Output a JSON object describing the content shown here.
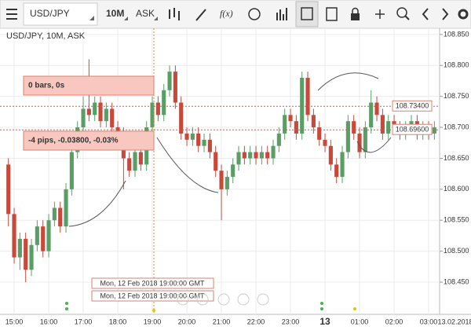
{
  "toolbar": {
    "symbol": "USD/JPY",
    "timeframe": "10M",
    "price": "ASK",
    "function": "f(x)"
  },
  "chart_data": {
    "type": "candlestick",
    "title": "USD/JPY, 10M, ASK",
    "categories": [
      null,
      "15:00",
      null,
      null,
      null,
      null,
      null,
      "16:00",
      null,
      null,
      null,
      null,
      null,
      "17:00",
      null,
      null,
      null,
      null,
      null,
      "18:00",
      null,
      null,
      null,
      null,
      null,
      "19:00",
      null,
      null,
      null,
      null,
      null,
      "20:00",
      null,
      null,
      null,
      null,
      null,
      "21:00",
      null,
      null,
      null,
      null,
      null,
      "22:00",
      null,
      null,
      null,
      null,
      null,
      "23:00",
      null,
      null,
      null,
      null,
      null,
      "13",
      null,
      null,
      null,
      null,
      null,
      "01:00",
      null,
      null,
      null,
      null,
      null,
      "02:00",
      null,
      null,
      null,
      null,
      null,
      "03:00",
      null
    ],
    "date_label": "13.02.2018",
    "open": [
      108.64,
      108.56,
      108.49,
      108.52,
      108.47,
      108.51,
      108.54,
      108.5,
      108.55,
      108.57,
      108.54,
      108.6,
      108.66,
      108.7,
      108.73,
      108.72,
      108.74,
      108.71,
      108.73,
      108.7,
      108.69,
      108.65,
      108.63,
      108.66,
      108.64,
      108.7,
      108.74,
      108.72,
      108.76,
      108.79,
      108.74,
      108.69,
      108.68,
      108.69,
      108.67,
      108.68,
      108.66,
      108.63,
      108.6,
      108.62,
      108.64,
      108.66,
      108.65,
      108.66,
      108.65,
      108.66,
      108.65,
      108.67,
      108.69,
      108.72,
      108.71,
      108.69,
      108.78,
      108.72,
      108.7,
      108.68,
      108.67,
      108.64,
      108.62,
      108.66,
      108.71,
      108.69,
      108.66,
      108.7,
      108.74,
      108.72,
      108.69,
      108.71,
      108.7,
      108.69,
      108.7,
      108.71,
      108.69,
      108.7,
      108.69
    ],
    "high": [
      108.65,
      108.57,
      108.53,
      108.53,
      108.52,
      108.55,
      108.55,
      108.56,
      108.58,
      108.58,
      108.61,
      108.67,
      108.71,
      108.75,
      108.81,
      108.75,
      108.75,
      108.74,
      108.74,
      108.71,
      108.7,
      108.66,
      108.67,
      108.67,
      108.71,
      108.75,
      108.75,
      108.77,
      108.8,
      108.8,
      108.75,
      108.7,
      108.7,
      108.7,
      108.69,
      108.69,
      108.67,
      108.64,
      108.63,
      108.65,
      108.67,
      108.67,
      108.67,
      108.67,
      108.67,
      108.67,
      108.68,
      108.7,
      108.73,
      108.73,
      108.72,
      108.79,
      108.79,
      108.73,
      108.71,
      108.69,
      108.68,
      108.65,
      108.67,
      108.72,
      108.72,
      108.7,
      108.71,
      108.76,
      108.75,
      108.73,
      108.72,
      108.72,
      108.71,
      108.71,
      108.72,
      108.72,
      108.71,
      108.71,
      108.71
    ],
    "low": [
      108.54,
      108.48,
      108.47,
      108.45,
      108.46,
      108.5,
      108.49,
      108.49,
      108.54,
      108.53,
      108.53,
      108.59,
      108.65,
      108.69,
      108.71,
      108.71,
      108.7,
      108.7,
      108.69,
      108.68,
      108.6,
      108.62,
      108.62,
      108.63,
      108.63,
      108.69,
      108.71,
      108.71,
      108.75,
      108.73,
      108.68,
      108.67,
      108.67,
      108.66,
      108.66,
      108.65,
      108.62,
      108.55,
      108.59,
      108.61,
      108.63,
      108.64,
      108.64,
      108.64,
      108.64,
      108.64,
      108.64,
      108.66,
      108.68,
      108.7,
      108.68,
      108.68,
      108.71,
      108.69,
      108.67,
      108.66,
      108.63,
      108.61,
      108.61,
      108.65,
      108.68,
      108.65,
      108.65,
      108.69,
      108.71,
      108.68,
      108.68,
      108.69,
      108.68,
      108.68,
      108.69,
      108.68,
      108.68,
      108.68,
      108.68
    ],
    "close": [
      108.56,
      108.49,
      108.52,
      108.47,
      108.51,
      108.54,
      108.5,
      108.55,
      108.57,
      108.54,
      108.6,
      108.66,
      108.7,
      108.73,
      108.72,
      108.74,
      108.71,
      108.73,
      108.7,
      108.69,
      108.65,
      108.63,
      108.66,
      108.64,
      108.7,
      108.74,
      108.72,
      108.76,
      108.79,
      108.74,
      108.69,
      108.68,
      108.69,
      108.67,
      108.68,
      108.66,
      108.63,
      108.6,
      108.62,
      108.64,
      108.66,
      108.65,
      108.66,
      108.65,
      108.66,
      108.65,
      108.67,
      108.69,
      108.72,
      108.71,
      108.69,
      108.78,
      108.72,
      108.7,
      108.68,
      108.67,
      108.64,
      108.62,
      108.66,
      108.71,
      108.69,
      108.66,
      108.7,
      108.74,
      108.72,
      108.69,
      108.71,
      108.7,
      108.69,
      108.7,
      108.71,
      108.69,
      108.7,
      108.69,
      108.7
    ],
    "up_color": "#5a9e66",
    "down_color": "#c8493a",
    "ylim": [
      108.398,
      108.86
    ],
    "yticks": [
      {
        "value": 108.45,
        "label": "108.450"
      },
      {
        "value": 108.5,
        "label": "108.500"
      },
      {
        "value": 108.55,
        "label": "108.550"
      },
      {
        "value": 108.6,
        "label": "108.600"
      },
      {
        "value": 108.65,
        "label": "108.650"
      },
      {
        "value": 108.7,
        "label": "108.700"
      },
      {
        "value": 108.75,
        "label": "108.750"
      },
      {
        "value": 108.8,
        "label": "108.800"
      },
      {
        "value": 108.85,
        "label": "108.850"
      }
    ],
    "grid": true,
    "price_lines": [
      {
        "value": 108.734,
        "label": "108.73400"
      },
      {
        "value": 108.696,
        "label": "108.69600"
      }
    ],
    "annotations": [
      "0 bars, 0s",
      "-4 pips, -0.03800, -0.03%"
    ],
    "crosshair_labels": [
      "Mon, 12 Feb 2018 19:00:00 GMT",
      "Mon, 12 Feb 2018 19:00:00 GMT"
    ]
  }
}
